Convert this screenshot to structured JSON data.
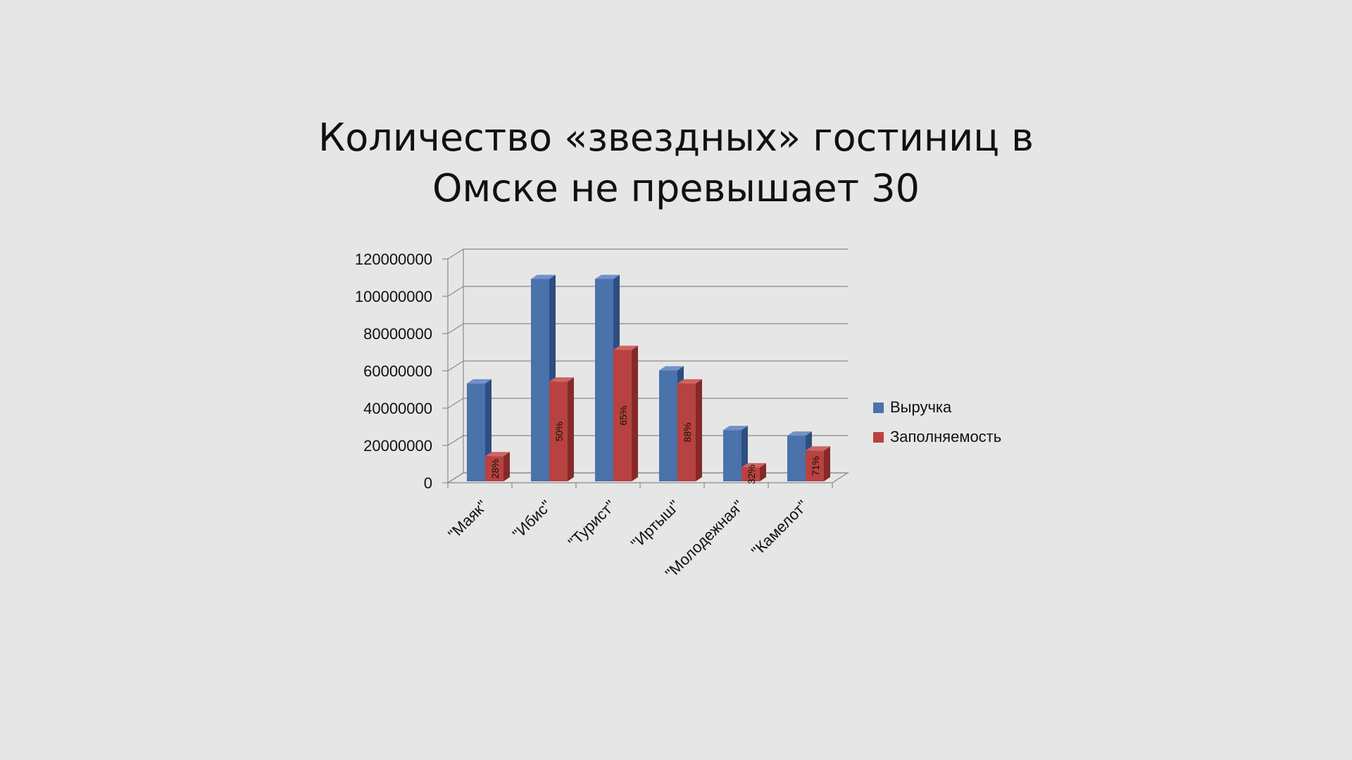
{
  "slide": {
    "title_line1": "Количество «звездных» гостиниц в",
    "title_line2": "Омске не превышает 30"
  },
  "colors": {
    "background": "#e6e6e6",
    "revenue": "#4a72ab",
    "occupancy": "#b84240"
  },
  "chart_data": {
    "type": "bar",
    "categories": [
      "\"Маяк\"",
      "\"Ибис\"",
      "\"Турист\"",
      "\"Иртыш\"",
      "\"Молодежная\"",
      "\"Камелот\""
    ],
    "series": [
      {
        "name": "Выручка",
        "values": [
          54000000,
          110000000,
          110000000,
          61000000,
          29000000,
          26000000
        ]
      },
      {
        "name": "Заполняемость",
        "values": [
          15000000,
          55000000,
          72000000,
          54000000,
          9000000,
          18000000
        ],
        "data_labels": [
          "28%",
          "50%",
          "65%",
          "88%",
          "32%",
          "71%"
        ]
      }
    ],
    "ylim": [
      0,
      120000000
    ],
    "yticks": [
      "0",
      "20000000",
      "40000000",
      "60000000",
      "80000000",
      "100000000",
      "120000000"
    ],
    "grid": true,
    "legend_position": "right",
    "style": "3d-clustered"
  }
}
